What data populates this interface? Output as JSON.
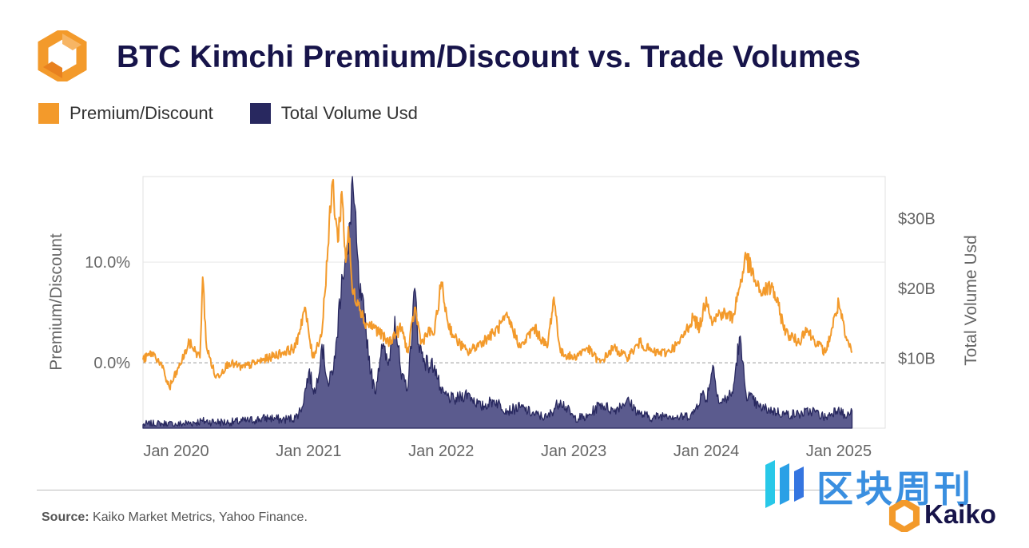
{
  "header": {
    "title": "BTC Kimchi Premium/Discount vs. Trade Volumes"
  },
  "colors": {
    "premium": "#f39a2b",
    "volume": "#28285f",
    "volume_fill": "#5b5b8e",
    "title": "#17144a",
    "grid": "#e6e6e6",
    "zero_line": "#9a9a9a"
  },
  "chart_data": {
    "type": "line",
    "title": "BTC Kimchi Premium/Discount vs. Trade Volumes",
    "legend": [
      {
        "name": "Premium/Discount",
        "color": "#f39a2b"
      },
      {
        "name": "Total Volume Usd",
        "color": "#28285f"
      }
    ],
    "legend_position": "top-left",
    "ylabel_left": "Premium/Discount",
    "ylabel_right": "Total Volume Usd",
    "y_left_ticks": [
      "10.0%",
      "0.0%"
    ],
    "y_left_tick_values": [
      10,
      0
    ],
    "y_left_range": [
      -6.5,
      18.5
    ],
    "y_right_ticks": [
      "$30B",
      "$20B",
      "$10B"
    ],
    "y_right_tick_values": [
      30,
      20,
      10
    ],
    "y_right_range": [
      0,
      36
    ],
    "x_ticks": [
      "Jan 2020",
      "Jan 2021",
      "Jan 2022",
      "Jan 2023",
      "Jan 2024",
      "Jan 2025"
    ],
    "x_tick_values": [
      2020.0,
      2021.0,
      2022.0,
      2023.0,
      2024.0,
      2025.0
    ],
    "x_range": [
      2019.75,
      2025.35
    ],
    "grid": "horizontal",
    "series": [
      {
        "name": "Premium/Discount",
        "axis": "left",
        "style": "line",
        "x": [
          2019.75,
          2019.82,
          2019.88,
          2019.95,
          2020.02,
          2020.1,
          2020.18,
          2020.2,
          2020.23,
          2020.3,
          2020.4,
          2020.5,
          2020.6,
          2020.7,
          2020.8,
          2020.9,
          2020.97,
          2021.03,
          2021.1,
          2021.18,
          2021.22,
          2021.25,
          2021.28,
          2021.3,
          2021.33,
          2021.38,
          2021.42,
          2021.5,
          2021.6,
          2021.7,
          2021.75,
          2021.8,
          2021.85,
          2021.9,
          2021.95,
          2022.0,
          2022.05,
          2022.1,
          2022.2,
          2022.3,
          2022.4,
          2022.5,
          2022.6,
          2022.7,
          2022.8,
          2022.85,
          2022.9,
          2023.0,
          2023.1,
          2023.2,
          2023.3,
          2023.4,
          2023.5,
          2023.6,
          2023.7,
          2023.8,
          2023.9,
          2023.95,
          2024.0,
          2024.05,
          2024.1,
          2024.2,
          2024.3,
          2024.4,
          2024.5,
          2024.6,
          2024.7,
          2024.75,
          2024.8,
          2024.9,
          2025.0,
          2025.05,
          2025.1
        ],
        "values": [
          0.3,
          1.0,
          0.0,
          -2.5,
          -0.5,
          2.0,
          0.5,
          8.5,
          1.5,
          -1.5,
          0.0,
          -0.5,
          0.0,
          0.5,
          1.0,
          1.5,
          5.5,
          0.5,
          3.0,
          18.0,
          12.0,
          17.0,
          10.0,
          13.5,
          7.0,
          6.0,
          4.0,
          3.5,
          2.0,
          3.5,
          1.0,
          5.5,
          2.0,
          3.0,
          3.0,
          8.0,
          4.0,
          2.5,
          1.0,
          2.0,
          3.0,
          4.5,
          1.5,
          3.5,
          1.5,
          6.5,
          1.0,
          0.5,
          1.5,
          0.0,
          1.5,
          0.5,
          2.0,
          1.0,
          1.0,
          2.0,
          4.5,
          3.5,
          6.5,
          4.0,
          5.0,
          4.5,
          10.5,
          7.0,
          7.5,
          3.0,
          2.0,
          3.5,
          2.5,
          1.0,
          6.0,
          2.5,
          1.0
        ]
      },
      {
        "name": "Total Volume Usd",
        "axis": "right",
        "style": "area",
        "x": [
          2019.75,
          2019.9,
          2020.0,
          2020.2,
          2020.4,
          2020.6,
          2020.7,
          2020.8,
          2020.9,
          2020.95,
          2021.0,
          2021.05,
          2021.1,
          2021.15,
          2021.2,
          2021.25,
          2021.3,
          2021.33,
          2021.38,
          2021.42,
          2021.47,
          2021.5,
          2021.55,
          2021.6,
          2021.65,
          2021.7,
          2021.75,
          2021.8,
          2021.83,
          2021.87,
          2021.9,
          2021.95,
          2022.0,
          2022.1,
          2022.2,
          2022.3,
          2022.4,
          2022.5,
          2022.6,
          2022.7,
          2022.8,
          2022.9,
          2023.0,
          2023.1,
          2023.2,
          2023.3,
          2023.4,
          2023.5,
          2023.6,
          2023.7,
          2023.8,
          2023.9,
          2023.97,
          2024.0,
          2024.05,
          2024.1,
          2024.2,
          2024.25,
          2024.3,
          2024.4,
          2024.5,
          2024.6,
          2024.7,
          2024.8,
          2024.9,
          2025.0,
          2025.05,
          2025.1
        ],
        "values": [
          0.5,
          0.6,
          0.5,
          1.0,
          0.8,
          1.2,
          1.5,
          1.2,
          1.5,
          3.0,
          8.0,
          5.0,
          12.0,
          6.0,
          10.0,
          22.0,
          25.0,
          36.0,
          20.0,
          16.0,
          8.0,
          5.0,
          12.0,
          9.0,
          16.0,
          7.0,
          6.0,
          20.0,
          12.0,
          10.0,
          9.0,
          9.0,
          5.0,
          4.0,
          5.0,
          3.0,
          4.0,
          2.5,
          3.0,
          2.0,
          1.5,
          4.0,
          1.5,
          1.5,
          3.5,
          2.5,
          4.0,
          2.0,
          1.5,
          2.0,
          1.5,
          2.0,
          5.0,
          4.0,
          9.0,
          3.5,
          5.0,
          13.0,
          5.0,
          3.0,
          2.5,
          2.0,
          2.0,
          2.5,
          1.5,
          3.0,
          1.5,
          2.5
        ]
      }
    ]
  },
  "source": {
    "label": "Source:",
    "text": "Kaiko Market Metrics, Yahoo Finance."
  },
  "watermark": {
    "text": "区块周刊",
    "icon": "blockweekly-logo-icon"
  },
  "brand": {
    "name": "Kaiko",
    "icon": "kaiko-logo-icon",
    "logo_color": "#f39a2b"
  }
}
